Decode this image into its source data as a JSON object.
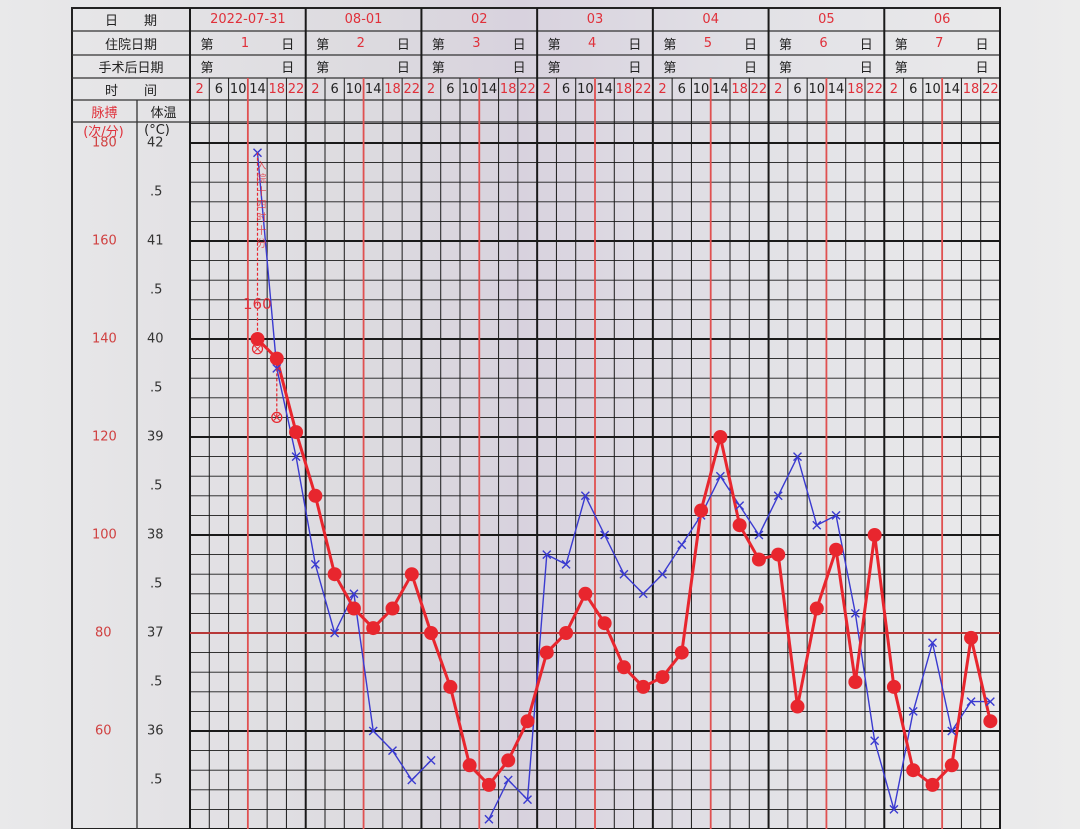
{
  "header": {
    "row_labels": {
      "date": "日　　期",
      "admission_day": "住院日期",
      "post_op_day": "手术后日期",
      "time": "时　　间"
    },
    "pulse_label": "脉搏",
    "temp_label": "体温",
    "pulse_unit": "(次/分)",
    "temp_unit": "(°C)",
    "day_prefix": "第",
    "day_suffix": "日",
    "days": [
      {
        "date": "2022-07-31",
        "admission_day": "1"
      },
      {
        "date": "08-01",
        "admission_day": "2"
      },
      {
        "date": "02",
        "admission_day": "3"
      },
      {
        "date": "03",
        "admission_day": "4"
      },
      {
        "date": "04",
        "admission_day": "5"
      },
      {
        "date": "05",
        "admission_day": "6"
      },
      {
        "date": "06",
        "admission_day": "7"
      }
    ],
    "times": [
      "2",
      "6",
      "10",
      "14",
      "18",
      "22"
    ],
    "time_colors": [
      "#e0303a",
      "#222222",
      "#222222",
      "#222222",
      "#e0303a",
      "#e0303a"
    ]
  },
  "annotations": {
    "pulse_note": "160",
    "vertical_note": "入院十四时十分"
  },
  "chart_data": {
    "type": "line",
    "title": "",
    "x_categories": "7 days × times 2,6,10,14,18,22",
    "temperature_axis": {
      "label": "体温",
      "unit": "(°C)",
      "ylim": [
        35.0,
        42.2
      ],
      "ticks": [
        "42",
        ".5",
        "41",
        ".5",
        "40",
        ".5",
        "39",
        ".5",
        "38",
        ".5",
        "37",
        ".5",
        "36",
        ".5"
      ],
      "tick_values": [
        42,
        41.5,
        41,
        40.5,
        40,
        39.5,
        39,
        38.5,
        38,
        37.5,
        37,
        36.5,
        36,
        35.5
      ]
    },
    "pulse_axis": {
      "label": "脉搏",
      "unit": "(次/分)",
      "ticks": [
        "180",
        "160",
        "140",
        "120",
        "100",
        "80",
        "60"
      ],
      "tick_values": [
        180,
        160,
        140,
        120,
        100,
        80,
        60
      ]
    },
    "reference_line_temp": 37,
    "grid": true,
    "colors": {
      "pulse": "#e8262e",
      "temperature": "#3a3ad0",
      "grid": "#1a1a1a",
      "red_rule": "#e05050"
    },
    "series": [
      {
        "key": "pulse",
        "marker": "filled-circle",
        "values": [
          null,
          null,
          null,
          140,
          136,
          121,
          108,
          92,
          85,
          81,
          85,
          92,
          80,
          69,
          53,
          49,
          54,
          62,
          76,
          80,
          88,
          82,
          73,
          69,
          71,
          76,
          105,
          120,
          102,
          95,
          96,
          65,
          85,
          97,
          70,
          100,
          69,
          52,
          49,
          53,
          79,
          62
        ]
      },
      {
        "key": "temperature",
        "marker": "x",
        "values": [
          null,
          null,
          null,
          41.9,
          39.7,
          38.8,
          37.7,
          37.0,
          37.4,
          36.0,
          35.8,
          35.5,
          35.7,
          null,
          null,
          35.1,
          35.5,
          35.3,
          37.8,
          37.7,
          38.4,
          38.0,
          37.6,
          37.4,
          37.6,
          37.9,
          38.2,
          38.6,
          38.3,
          38.0,
          38.4,
          38.8,
          38.1,
          38.2,
          37.2,
          35.9,
          35.2,
          36.2,
          36.9,
          36.0,
          36.3,
          36.3
        ]
      },
      {
        "key": "cooled_temperature",
        "marker": "red-circle-cross",
        "points": [
          {
            "index": 3,
            "value": 39.9
          },
          {
            "index": 4,
            "value": 39.2
          }
        ]
      }
    ]
  }
}
